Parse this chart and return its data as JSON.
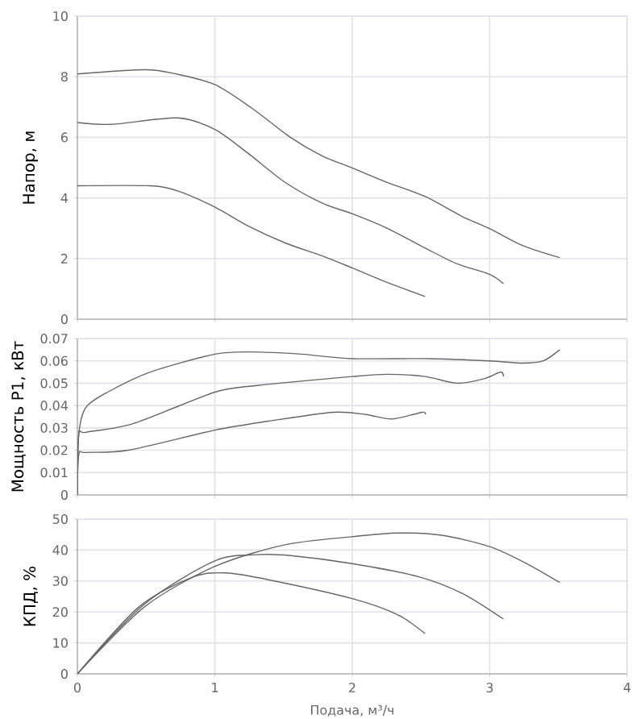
{
  "chart_data": [
    {
      "type": "line",
      "ylabel": "Напор, м",
      "xlim": [
        0,
        4
      ],
      "xticks": [
        0,
        1,
        2,
        3,
        4
      ],
      "ylim": [
        0,
        10
      ],
      "yticks": [
        0,
        2,
        4,
        6,
        8,
        10
      ],
      "grid": true,
      "tick_labels": "y",
      "series": [
        {
          "color": "#666666",
          "x": [
            0,
            0.49,
            0.72,
            1,
            1.27,
            1.55,
            1.78,
            2,
            2.25,
            2.53,
            2.8,
            3,
            3.24,
            3.51
          ],
          "values": [
            8.09,
            8.23,
            8.09,
            7.74,
            6.96,
            6.0,
            5.39,
            4.99,
            4.52,
            4.05,
            3.39,
            2.99,
            2.43,
            2.03
          ]
        },
        {
          "color": "#666666",
          "x": [
            0,
            0.25,
            0.73,
            1,
            1.24,
            1.51,
            1.78,
            2,
            2.25,
            2.53,
            2.76,
            3,
            3.1
          ],
          "values": [
            6.49,
            6.43,
            6.64,
            6.26,
            5.48,
            4.52,
            3.83,
            3.48,
            3.01,
            2.35,
            1.83,
            1.48,
            1.17
          ]
        },
        {
          "color": "#666666",
          "x": [
            0,
            0.53,
            0.73,
            1,
            1.24,
            1.51,
            1.78,
            2,
            2.25,
            2.53
          ],
          "values": [
            4.4,
            4.4,
            4.23,
            3.7,
            3.08,
            2.52,
            2.09,
            1.69,
            1.22,
            0.75
          ]
        }
      ]
    },
    {
      "type": "line",
      "ylabel": "Мощность P1, кВт",
      "xlim": [
        0,
        4
      ],
      "xticks": [
        0,
        1,
        2,
        3,
        4
      ],
      "ylim": [
        0,
        0.07
      ],
      "yticks": [
        0,
        0.01,
        0.02,
        0.03,
        0.04,
        0.05,
        0.06,
        0.07
      ],
      "grid": true,
      "tick_labels": "y",
      "series": [
        {
          "color": "#666666",
          "x": [
            0,
            0.01,
            0.06,
            0.22,
            0.53,
            1,
            1.27,
            1.63,
            2,
            2.57,
            3,
            3.24,
            3.39,
            3.51
          ],
          "values": [
            0,
            0.027,
            0.039,
            0.046,
            0.055,
            0.063,
            0.064,
            0.063,
            0.061,
            0.061,
            0.06,
            0.059,
            0.06,
            0.065
          ]
        },
        {
          "color": "#666666",
          "x": [
            0,
            0.01,
            0.06,
            0.41,
            1,
            1.31,
            2,
            2.25,
            2.53,
            2.76,
            2.96,
            3.08,
            3.1
          ],
          "values": [
            0,
            0.027,
            0.028,
            0.032,
            0.046,
            0.049,
            0.053,
            0.054,
            0.053,
            0.05,
            0.052,
            0.055,
            0.053
          ]
        },
        {
          "color": "#666666",
          "x": [
            0,
            0.01,
            0.06,
            0.37,
            1,
            1.39,
            1.86,
            2.1,
            2.29,
            2.51,
            2.53
          ],
          "values": [
            0,
            0.018,
            0.019,
            0.02,
            0.029,
            0.033,
            0.037,
            0.036,
            0.034,
            0.037,
            0.036
          ]
        }
      ]
    },
    {
      "type": "line",
      "xlabel": "Подача, м³/ч",
      "ylabel": "КПД, %",
      "xlim": [
        0,
        4
      ],
      "xticks": [
        0,
        1,
        2,
        3,
        4
      ],
      "ylim": [
        0,
        50
      ],
      "yticks": [
        0,
        10,
        20,
        30,
        40,
        50
      ],
      "grid": true,
      "series": [
        {
          "color": "#666666",
          "x": [
            0,
            0.49,
            1,
            1.51,
            2,
            2.33,
            2.65,
            3,
            3.27,
            3.51
          ],
          "values": [
            0,
            21.7,
            34.7,
            41.7,
            44.3,
            45.5,
            44.8,
            41.1,
            35.6,
            29.5
          ]
        },
        {
          "color": "#666666",
          "x": [
            0,
            0.49,
            1,
            1.31,
            1.55,
            2,
            2.49,
            2.8,
            3.1
          ],
          "values": [
            0,
            22.6,
            36.5,
            38.5,
            38.2,
            35.6,
            31.3,
            26,
            17.7
          ]
        },
        {
          "color": "#666666",
          "x": [
            0,
            0.45,
            0.84,
            1.08,
            1.39,
            2,
            2.33,
            2.53
          ],
          "values": [
            0,
            21.7,
            31.3,
            32.6,
            30.4,
            24.3,
            19.1,
            13.0
          ]
        }
      ]
    }
  ]
}
